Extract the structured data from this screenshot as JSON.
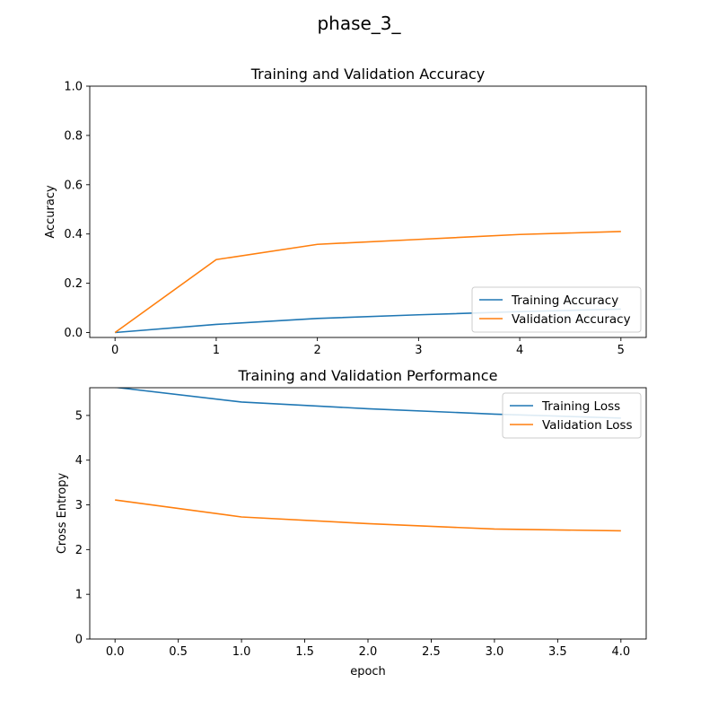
{
  "figure": {
    "suptitle": "phase_3_"
  },
  "chart_data": [
    {
      "type": "line",
      "title": "Training and Validation Accuracy",
      "xlabel": "",
      "ylabel": "Accuracy",
      "xlim": [
        -0.25,
        5.25
      ],
      "ylim": [
        -0.02,
        1.0
      ],
      "xticks": [
        0,
        1,
        2,
        3,
        4,
        5
      ],
      "xtick_labels": [
        "0",
        "1",
        "2",
        "3",
        "4",
        "5"
      ],
      "yticks": [
        0.0,
        0.2,
        0.4,
        0.6,
        0.8,
        1.0
      ],
      "ytick_labels": [
        "0.0",
        "0.2",
        "0.4",
        "0.6",
        "0.8",
        "1.0"
      ],
      "legend": "lower-right",
      "grid": false,
      "x": [
        0,
        1,
        2,
        3,
        4,
        5
      ],
      "series": [
        {
          "name": "Training Accuracy",
          "color": "#1f77b4",
          "values": [
            0.0,
            0.033,
            0.057,
            0.072,
            0.085,
            0.095
          ]
        },
        {
          "name": "Validation Accuracy",
          "color": "#ff7f0e",
          "values": [
            0.0,
            0.296,
            0.358,
            0.378,
            0.398,
            0.41
          ]
        }
      ]
    },
    {
      "type": "line",
      "title": "Training and Validation Performance",
      "xlabel": "epoch",
      "ylabel": "Cross Entropy",
      "xlim": [
        -0.2,
        4.2
      ],
      "ylim": [
        0,
        5.62
      ],
      "xticks": [
        0,
        0.5,
        1,
        1.5,
        2,
        2.5,
        3,
        3.5,
        4
      ],
      "xtick_labels": [
        "0.0",
        "0.5",
        "1.0",
        "1.5",
        "2.0",
        "2.5",
        "3.0",
        "3.5",
        "4.0"
      ],
      "yticks": [
        0,
        1,
        2,
        3,
        4,
        5
      ],
      "ytick_labels": [
        "0",
        "1",
        "2",
        "3",
        "4",
        "5"
      ],
      "legend": "upper-right",
      "grid": false,
      "x": [
        0,
        1,
        2,
        3,
        4
      ],
      "series": [
        {
          "name": "Training Loss",
          "color": "#1f77b4",
          "values": [
            5.63,
            5.3,
            5.15,
            5.03,
            4.94
          ]
        },
        {
          "name": "Validation Loss",
          "color": "#ff7f0e",
          "values": [
            3.11,
            2.73,
            2.58,
            2.46,
            2.42
          ]
        }
      ]
    }
  ]
}
